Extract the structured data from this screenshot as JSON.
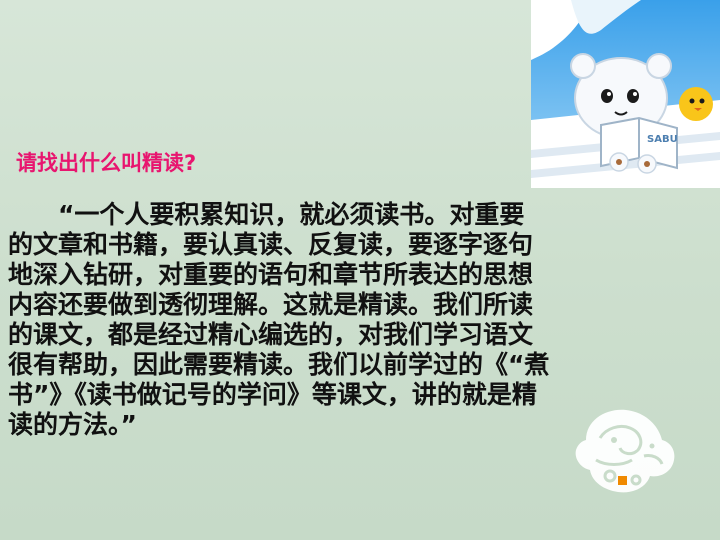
{
  "slide": {
    "question": "请找出什么叫精读?",
    "paragraph_lines": [
      "　　“一个人要积累知识，就必须读书。对重要",
      "的文章和书籍，要认真读、反复读，要逐字逐句",
      "地深入钻研，对重要的语句和章节所表达的思想",
      "内容还要做到透彻理解。这就是精读。我们所读",
      "的课文，都是经过精心编选的，对我们学习语文",
      "很有帮助，因此需要精读。我们以前学过的《“煮",
      "书”》《读书做记号的学问》等课文，讲的就是精",
      "读的方法。”"
    ],
    "colors": {
      "background": "#cfe0d0",
      "question": "#e8156f",
      "text": "#111111",
      "accent_dot": "#f08a00"
    }
  },
  "decorations": {
    "cartoon_icon": "cartoon-character-reading-icon",
    "book_label": "SABU",
    "seal_icon": "chinese-seal-dragon-icon"
  }
}
